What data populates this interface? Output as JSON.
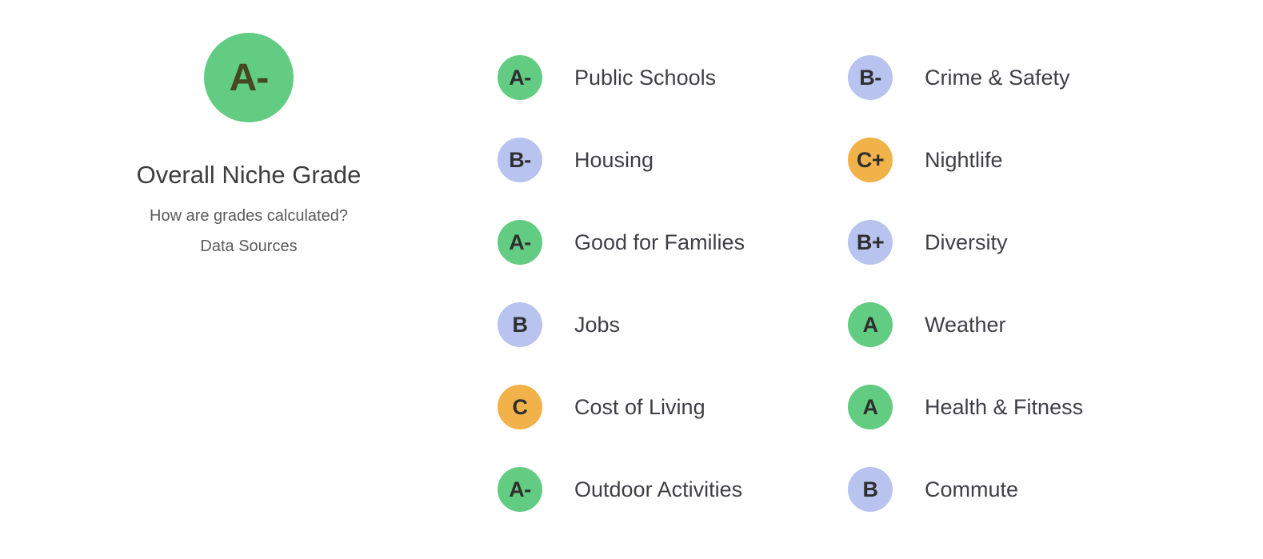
{
  "overall": {
    "grade": "A-",
    "color": "green",
    "title": "Overall Niche Grade",
    "links": [
      {
        "label": "How are grades calculated?"
      },
      {
        "label": "Data Sources"
      }
    ]
  },
  "grades": {
    "items": [
      {
        "grade": "A-",
        "color": "green",
        "label": "Public Schools"
      },
      {
        "grade": "B-",
        "color": "blue",
        "label": "Housing"
      },
      {
        "grade": "A-",
        "color": "green",
        "label": "Good for Families"
      },
      {
        "grade": "B",
        "color": "blue",
        "label": "Jobs"
      },
      {
        "grade": "C",
        "color": "orange",
        "label": "Cost of Living"
      },
      {
        "grade": "A-",
        "color": "green",
        "label": "Outdoor Activities"
      },
      {
        "grade": "B-",
        "color": "blue",
        "label": "Crime & Safety"
      },
      {
        "grade": "C+",
        "color": "orange",
        "label": "Nightlife"
      },
      {
        "grade": "B+",
        "color": "blue",
        "label": "Diversity"
      },
      {
        "grade": "A",
        "color": "green",
        "label": "Weather"
      },
      {
        "grade": "A",
        "color": "green",
        "label": "Health & Fitness"
      },
      {
        "grade": "B",
        "color": "blue",
        "label": "Commute"
      }
    ]
  },
  "theme": {
    "green": "#62cc82",
    "blue": "#b8c4ef",
    "orange": "#f2b24a"
  }
}
